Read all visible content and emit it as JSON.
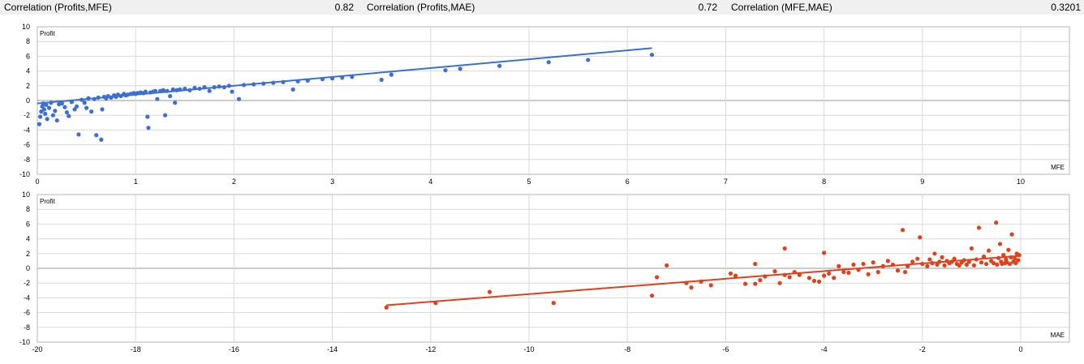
{
  "header": {
    "items": [
      {
        "label": "Correlation (Profits,MFE)",
        "value": "0.82"
      },
      {
        "label": "Correlation (Profits,MAE)",
        "value": "0.72"
      },
      {
        "label": "Correlation (MFE,MAE)",
        "value": "0.3201"
      }
    ]
  },
  "colors": {
    "mfe_series": "#3b6fd1",
    "mae_series": "#e0401b",
    "grid": "#d9d9d9",
    "header_bg": "#f0f0f0"
  },
  "chart_data": [
    {
      "type": "scatter",
      "ylabel": "Profit",
      "xlabel": "MFE",
      "xlim": [
        0,
        10
      ],
      "ylim": [
        -10,
        10
      ],
      "xticks": [
        0,
        1,
        2,
        3,
        4,
        5,
        6,
        7,
        8,
        9,
        10
      ],
      "yticks": [
        -10,
        -8,
        -6,
        -4,
        -2,
        0,
        2,
        4,
        6,
        8,
        10
      ],
      "grid": true,
      "trendline": {
        "x": [
          0,
          6.25
        ],
        "y": [
          -0.4,
          7.1
        ]
      },
      "series": [
        {
          "points": [
            [
              0.02,
              -3.2
            ],
            [
              0.03,
              -2.2
            ],
            [
              0.04,
              -1.5
            ],
            [
              0.05,
              -0.8
            ],
            [
              0.06,
              -0.4
            ],
            [
              0.07,
              -1.2
            ],
            [
              0.08,
              -1.8
            ],
            [
              0.09,
              -0.6
            ],
            [
              0.1,
              -2.5
            ],
            [
              0.12,
              -1.0
            ],
            [
              0.14,
              -0.3
            ],
            [
              0.16,
              -2.0
            ],
            [
              0.18,
              -1.4
            ],
            [
              0.2,
              -2.7
            ],
            [
              0.22,
              -0.5
            ],
            [
              0.25,
              -0.4
            ],
            [
              0.28,
              -0.9
            ],
            [
              0.3,
              -1.6
            ],
            [
              0.32,
              -2.1
            ],
            [
              0.35,
              -0.2
            ],
            [
              0.38,
              -1.2
            ],
            [
              0.4,
              -0.8
            ],
            [
              0.42,
              -4.6
            ],
            [
              0.45,
              0.1
            ],
            [
              0.48,
              -0.3
            ],
            [
              0.5,
              -1.0
            ],
            [
              0.52,
              0.3
            ],
            [
              0.55,
              -1.5
            ],
            [
              0.58,
              0.2
            ],
            [
              0.6,
              -4.7
            ],
            [
              0.62,
              0.4
            ],
            [
              0.65,
              -5.3
            ],
            [
              0.66,
              -1.2
            ],
            [
              0.68,
              0.5
            ],
            [
              0.7,
              0.3
            ],
            [
              0.72,
              0.6
            ],
            [
              0.75,
              0.4
            ],
            [
              0.78,
              0.7
            ],
            [
              0.8,
              0.5
            ],
            [
              0.82,
              0.8
            ],
            [
              0.85,
              0.6
            ],
            [
              0.88,
              0.9
            ],
            [
              0.9,
              0.7
            ],
            [
              0.92,
              0.8
            ],
            [
              0.95,
              0.9
            ],
            [
              0.98,
              1.0
            ],
            [
              1.0,
              0.9
            ],
            [
              1.02,
              1.0
            ],
            [
              1.05,
              1.1
            ],
            [
              1.08,
              1.0
            ],
            [
              1.1,
              1.2
            ],
            [
              1.12,
              -2.2
            ],
            [
              1.13,
              -3.7
            ],
            [
              1.15,
              1.1
            ],
            [
              1.18,
              1.2
            ],
            [
              1.2,
              1.3
            ],
            [
              1.22,
              0.2
            ],
            [
              1.25,
              1.3
            ],
            [
              1.28,
              1.4
            ],
            [
              1.3,
              -2.0
            ],
            [
              1.32,
              1.3
            ],
            [
              1.35,
              0.6
            ],
            [
              1.38,
              1.5
            ],
            [
              1.4,
              -0.3
            ],
            [
              1.42,
              1.4
            ],
            [
              1.45,
              1.5
            ],
            [
              1.5,
              1.6
            ],
            [
              1.55,
              1.4
            ],
            [
              1.6,
              1.7
            ],
            [
              1.65,
              1.6
            ],
            [
              1.7,
              1.8
            ],
            [
              1.75,
              1.3
            ],
            [
              1.8,
              1.8
            ],
            [
              1.85,
              1.9
            ],
            [
              1.9,
              1.8
            ],
            [
              1.95,
              2.0
            ],
            [
              1.98,
              1.2
            ],
            [
              2.05,
              0.2
            ],
            [
              2.1,
              2.1
            ],
            [
              2.2,
              2.2
            ],
            [
              2.3,
              2.3
            ],
            [
              2.4,
              2.4
            ],
            [
              2.5,
              2.5
            ],
            [
              2.6,
              1.5
            ],
            [
              2.65,
              2.6
            ],
            [
              2.75,
              2.7
            ],
            [
              2.9,
              2.9
            ],
            [
              3.0,
              3.0
            ],
            [
              3.1,
              3.1
            ],
            [
              3.2,
              3.2
            ],
            [
              3.5,
              2.8
            ],
            [
              3.6,
              3.5
            ],
            [
              4.15,
              4.1
            ],
            [
              4.3,
              4.3
            ],
            [
              4.7,
              4.7
            ],
            [
              5.2,
              5.2
            ],
            [
              5.6,
              5.5
            ],
            [
              6.25,
              6.2
            ]
          ]
        }
      ]
    },
    {
      "type": "scatter",
      "ylabel": "Profit",
      "xlabel": "MAE",
      "xlim": [
        -20,
        0
      ],
      "ylim": [
        -10,
        10
      ],
      "xticks": [
        -20,
        -18,
        -16,
        -14,
        -12,
        -10,
        -8,
        -6,
        -4,
        -2,
        0
      ],
      "yticks": [
        -10,
        -8,
        -6,
        -4,
        -2,
        0,
        2,
        4,
        6,
        8,
        10
      ],
      "grid": true,
      "trendline": {
        "x": [
          -12.9,
          0
        ],
        "y": [
          -5.0,
          1.7
        ]
      },
      "series": [
        {
          "points": [
            [
              -12.9,
              -5.3
            ],
            [
              -11.9,
              -4.7
            ],
            [
              -10.8,
              -3.2
            ],
            [
              -9.5,
              -4.7
            ],
            [
              -7.5,
              -3.7
            ],
            [
              -7.4,
              -1.2
            ],
            [
              -7.2,
              0.4
            ],
            [
              -6.8,
              -2.0
            ],
            [
              -6.7,
              -2.6
            ],
            [
              -6.5,
              -1.8
            ],
            [
              -6.3,
              -2.3
            ],
            [
              -5.9,
              -0.7
            ],
            [
              -5.8,
              -1.0
            ],
            [
              -5.6,
              -2.1
            ],
            [
              -5.4,
              -2.1
            ],
            [
              -5.4,
              0.6
            ],
            [
              -5.3,
              -1.6
            ],
            [
              -5.2,
              -1.1
            ],
            [
              -5.0,
              -0.4
            ],
            [
              -4.9,
              -2.0
            ],
            [
              -4.8,
              -0.9
            ],
            [
              -4.8,
              2.7
            ],
            [
              -4.7,
              -1.2
            ],
            [
              -4.6,
              -0.5
            ],
            [
              -4.5,
              -0.9
            ],
            [
              -4.3,
              -1.3
            ],
            [
              -4.2,
              -1.7
            ],
            [
              -4.1,
              -1.8
            ],
            [
              -4.0,
              -1.0
            ],
            [
              -4.0,
              2.1
            ],
            [
              -3.9,
              -0.7
            ],
            [
              -3.8,
              -1.3
            ],
            [
              -3.7,
              0.3
            ],
            [
              -3.6,
              -0.5
            ],
            [
              -3.5,
              -0.6
            ],
            [
              -3.4,
              0.5
            ],
            [
              -3.3,
              -0.2
            ],
            [
              -3.2,
              0.6
            ],
            [
              -3.1,
              -0.8
            ],
            [
              -3.0,
              0.8
            ],
            [
              -2.9,
              -0.5
            ],
            [
              -2.8,
              0.3
            ],
            [
              -2.7,
              1.0
            ],
            [
              -2.6,
              0.5
            ],
            [
              -2.5,
              -0.3
            ],
            [
              -2.4,
              5.2
            ],
            [
              -2.35,
              -0.5
            ],
            [
              -2.3,
              0.3
            ],
            [
              -2.2,
              0.9
            ],
            [
              -2.1,
              1.3
            ],
            [
              -2.05,
              4.2
            ],
            [
              -2.0,
              0.6
            ],
            [
              -1.9,
              0.3
            ],
            [
              -1.85,
              1.2
            ],
            [
              -1.8,
              0.7
            ],
            [
              -1.75,
              2.0
            ],
            [
              -1.7,
              0.5
            ],
            [
              -1.65,
              0.9
            ],
            [
              -1.6,
              1.5
            ],
            [
              -1.55,
              0.4
            ],
            [
              -1.5,
              1.0
            ],
            [
              -1.45,
              0.7
            ],
            [
              -1.4,
              0.9
            ],
            [
              -1.35,
              1.3
            ],
            [
              -1.3,
              0.6
            ],
            [
              -1.25,
              0.4
            ],
            [
              -1.2,
              0.8
            ],
            [
              -1.15,
              1.1
            ],
            [
              -1.1,
              0.5
            ],
            [
              -1.05,
              0.9
            ],
            [
              -1.0,
              2.7
            ],
            [
              -0.95,
              0.4
            ],
            [
              -0.9,
              1.2
            ],
            [
              -0.85,
              5.5
            ],
            [
              -0.8,
              0.8
            ],
            [
              -0.75,
              1.6
            ],
            [
              -0.7,
              0.6
            ],
            [
              -0.65,
              2.4
            ],
            [
              -0.6,
              1.0
            ],
            [
              -0.55,
              0.7
            ],
            [
              -0.5,
              6.2
            ],
            [
              -0.48,
              0.5
            ],
            [
              -0.45,
              1.4
            ],
            [
              -0.42,
              3.3
            ],
            [
              -0.4,
              0.9
            ],
            [
              -0.38,
              0.6
            ],
            [
              -0.35,
              1.8
            ],
            [
              -0.32,
              0.7
            ],
            [
              -0.3,
              1.2
            ],
            [
              -0.28,
              0.8
            ],
            [
              -0.25,
              2.5
            ],
            [
              -0.22,
              0.6
            ],
            [
              -0.2,
              1.5
            ],
            [
              -0.18,
              4.6
            ],
            [
              -0.15,
              0.9
            ],
            [
              -0.12,
              1.3
            ],
            [
              -0.1,
              0.7
            ],
            [
              -0.08,
              2.0
            ],
            [
              -0.05,
              1.1
            ],
            [
              -0.03,
              1.8
            ]
          ]
        }
      ]
    }
  ]
}
